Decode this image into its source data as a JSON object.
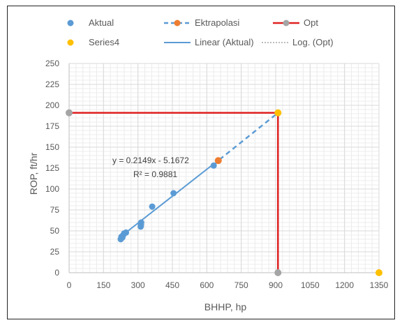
{
  "chart_data": {
    "type": "scatter",
    "xlabel": "BHHP, hp",
    "ylabel": "ROP, ft/hr",
    "xlim": [
      0,
      1350
    ],
    "ylim": [
      0,
      250
    ],
    "x_ticks": [
      0,
      150,
      300,
      450,
      600,
      750,
      900,
      1050,
      1200,
      1350
    ],
    "x_tick_labels": [
      "0",
      "150",
      "300",
      "450",
      "600",
      "750",
      "900",
      "1050",
      "1200",
      "1350"
    ],
    "y_ticks": [
      0,
      25,
      50,
      75,
      100,
      125,
      150,
      175,
      200,
      225,
      250
    ],
    "y_tick_labels": [
      "0",
      "25",
      "50",
      "75",
      "100",
      "125",
      "150",
      "175",
      "200",
      "225",
      "250"
    ],
    "grid": true,
    "legend_position": "top",
    "series": [
      {
        "name": "Aktual",
        "kind": "scatter",
        "color": "#5B9BD5",
        "points": [
          {
            "x": 225,
            "y": 40
          },
          {
            "x": 228,
            "y": 43
          },
          {
            "x": 232,
            "y": 42
          },
          {
            "x": 236,
            "y": 45
          },
          {
            "x": 240,
            "y": 47
          },
          {
            "x": 248,
            "y": 48
          },
          {
            "x": 312,
            "y": 55
          },
          {
            "x": 313,
            "y": 57
          },
          {
            "x": 314,
            "y": 60
          },
          {
            "x": 362,
            "y": 79
          },
          {
            "x": 455,
            "y": 95
          },
          {
            "x": 630,
            "y": 128
          }
        ]
      },
      {
        "name": "Ektrapolasi",
        "kind": "dashed-line",
        "color": "#5B9BD5",
        "marker_color": "#ED7D31",
        "points": [
          {
            "x": 630,
            "y": 128
          },
          {
            "x": 650,
            "y": 134
          },
          {
            "x": 910,
            "y": 191
          }
        ]
      },
      {
        "name": "Opt",
        "kind": "line",
        "color": "#E02020",
        "marker_color": "#A5A5A5",
        "points": [
          {
            "x": 0,
            "y": 191
          },
          {
            "x": 910,
            "y": 191
          },
          {
            "x": 910,
            "y": 0
          }
        ]
      },
      {
        "name": "Series4",
        "kind": "scatter",
        "color": "#FFC000",
        "points": [
          {
            "x": 910,
            "y": 191
          },
          {
            "x": 1350,
            "y": 0
          }
        ]
      },
      {
        "name": "Linear (Aktual)",
        "kind": "trendline",
        "color": "#5B9BD5",
        "points": [
          {
            "x": 222,
            "y": 42.5
          },
          {
            "x": 630,
            "y": 130
          }
        ]
      },
      {
        "name": "Log. (Opt)",
        "kind": "dotted-line",
        "color": "#A5A5A5",
        "points": []
      }
    ],
    "annotations": {
      "equation": "y = 0.2149x - 5.1672",
      "r_squared": "R² = 0.9881"
    }
  }
}
